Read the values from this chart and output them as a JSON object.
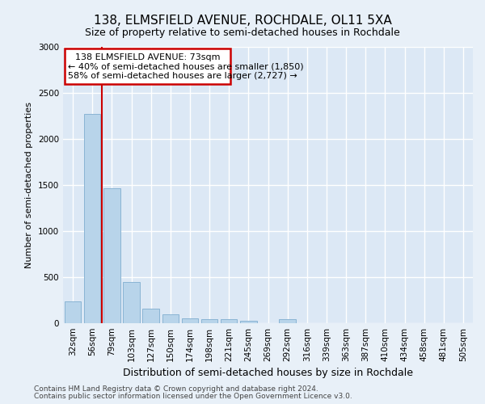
{
  "title_line1": "138, ELMSFIELD AVENUE, ROCHDALE, OL11 5XA",
  "title_line2": "Size of property relative to semi-detached houses in Rochdale",
  "xlabel": "Distribution of semi-detached houses by size in Rochdale",
  "ylabel": "Number of semi-detached properties",
  "footer_line1": "Contains HM Land Registry data © Crown copyright and database right 2024.",
  "footer_line2": "Contains public sector information licensed under the Open Government Licence v3.0.",
  "categories": [
    "32sqm",
    "56sqm",
    "79sqm",
    "103sqm",
    "127sqm",
    "150sqm",
    "174sqm",
    "198sqm",
    "221sqm",
    "245sqm",
    "269sqm",
    "292sqm",
    "316sqm",
    "339sqm",
    "363sqm",
    "387sqm",
    "410sqm",
    "434sqm",
    "458sqm",
    "481sqm",
    "505sqm"
  ],
  "values": [
    240,
    2270,
    1460,
    450,
    160,
    100,
    55,
    45,
    40,
    30,
    0,
    40,
    0,
    0,
    0,
    0,
    0,
    0,
    0,
    0,
    0
  ],
  "bar_color": "#b8d4ea",
  "bar_edge_color": "#8ab4d4",
  "property_line_x": 1.5,
  "annotation_text_line1": "138 ELMSFIELD AVENUE: 73sqm",
  "annotation_text_line2": "← 40% of semi-detached houses are smaller (1,850)",
  "annotation_text_line3": "58% of semi-detached houses are larger (2,727) →",
  "box_color": "#ffffff",
  "box_edge_color": "#cc0000",
  "vline_color": "#cc0000",
  "ylim": [
    0,
    3000
  ],
  "bg_color": "#e8f0f8",
  "plot_bg_color": "#dce8f5",
  "grid_color": "#ffffff",
  "title1_fontsize": 11,
  "title2_fontsize": 9,
  "ylabel_fontsize": 8,
  "xlabel_fontsize": 9,
  "tick_fontsize": 7.5,
  "annot_fontsize": 8,
  "footer_fontsize": 6.5
}
